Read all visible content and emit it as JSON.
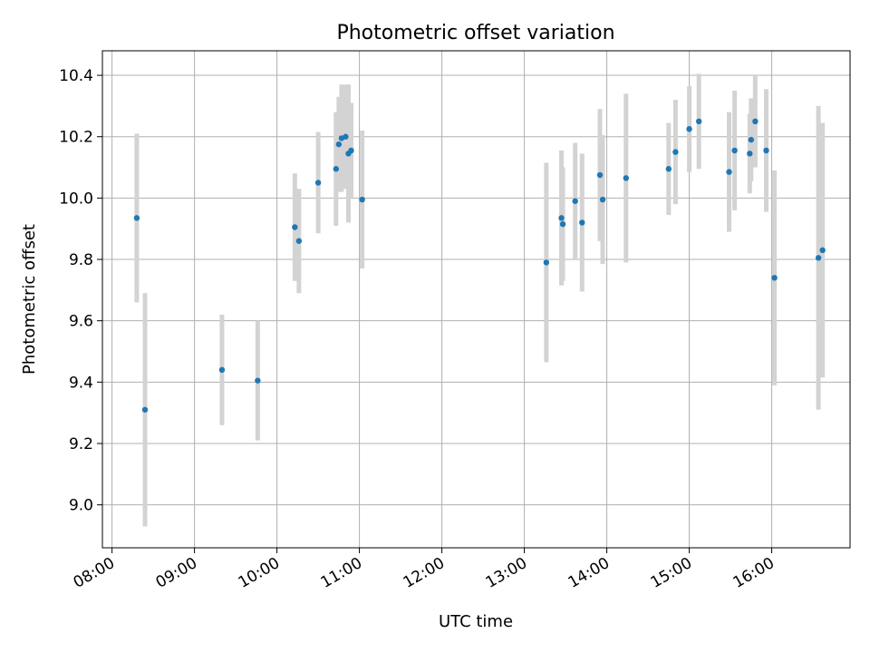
{
  "chart_data": {
    "type": "scatter",
    "title": "Photometric offset variation",
    "xlabel": "UTC time",
    "ylabel": "Photometric offset",
    "xlim": [
      "07:53",
      "16:57"
    ],
    "ylim": [
      8.86,
      10.48
    ],
    "grid": true,
    "x_ticks": [
      "08:00",
      "09:00",
      "10:00",
      "11:00",
      "12:00",
      "13:00",
      "14:00",
      "15:00",
      "16:00"
    ],
    "y_ticks": [
      "9.0",
      "9.2",
      "9.4",
      "9.6",
      "9.8",
      "10.0",
      "10.2",
      "10.4"
    ],
    "colors": {
      "point": "#1f77b4",
      "errorbar": "#d3d3d3",
      "grid": "#b0b0b0"
    },
    "series": [
      {
        "x": [
          "08:18",
          "08:24",
          "09:20",
          "09:46",
          "10:13",
          "10:16",
          "10:30",
          "10:43",
          "10:45",
          "10:47",
          "10:50",
          "10:52",
          "10:54",
          "11:02",
          "13:16",
          "13:27",
          "13:28",
          "13:37",
          "13:42",
          "13:55",
          "13:57",
          "14:14",
          "14:45",
          "14:50",
          "15:00",
          "15:07",
          "15:29",
          "15:33",
          "15:44",
          "15:45",
          "15:48",
          "15:56",
          "16:02",
          "16:34",
          "16:37"
        ],
        "y": [
          9.935,
          9.31,
          9.44,
          9.405,
          9.905,
          9.86,
          10.05,
          10.095,
          10.175,
          10.195,
          10.2,
          10.145,
          10.155,
          9.995,
          9.79,
          9.935,
          9.915,
          9.99,
          9.92,
          10.075,
          9.995,
          10.065,
          10.095,
          10.15,
          10.225,
          10.25,
          10.085,
          10.155,
          10.145,
          10.19,
          10.25,
          10.155,
          9.74,
          9.805,
          9.83
        ],
        "err": [
          0.275,
          0.38,
          0.18,
          0.195,
          0.175,
          0.17,
          0.165,
          0.185,
          0.155,
          0.175,
          0.17,
          0.225,
          0.155,
          0.225,
          0.325,
          0.22,
          0.185,
          0.19,
          0.225,
          0.215,
          0.21,
          0.275,
          0.15,
          0.17,
          0.14,
          0.155,
          0.195,
          0.195,
          0.13,
          0.135,
          0.15,
          0.2,
          0.35,
          0.495,
          0.415
        ]
      }
    ]
  }
}
